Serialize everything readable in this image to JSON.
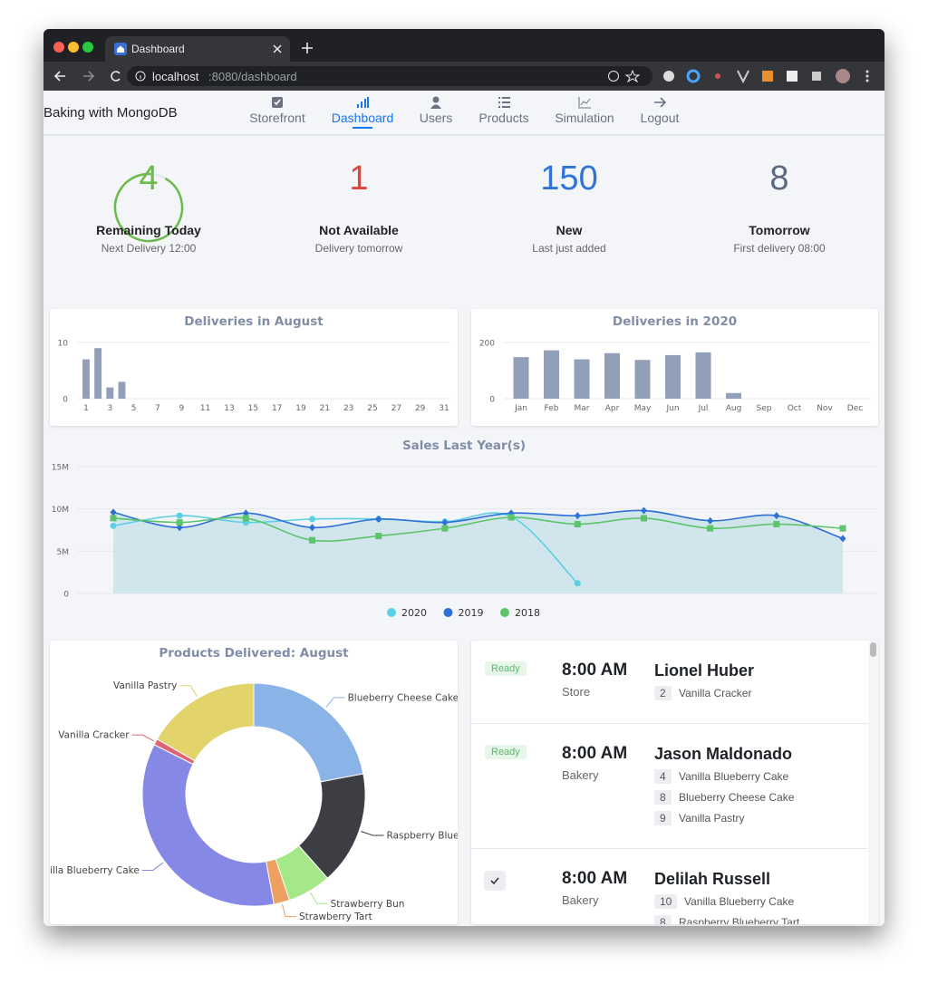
{
  "browser": {
    "tab_title": "Dashboard",
    "url_host": "localhost",
    "url_rest": ":8080/dashboard"
  },
  "app": {
    "brand": "Baking with MongoDB",
    "nav": [
      "Storefront",
      "Dashboard",
      "Users",
      "Products",
      "Simulation",
      "Logout"
    ]
  },
  "stats": [
    {
      "value": 4,
      "label": "Remaining Today",
      "sub": "Next Delivery 12:00"
    },
    {
      "value": 1,
      "label": "Not Available",
      "sub": "Delivery tomorrow"
    },
    {
      "value": 150,
      "label": "New",
      "sub": "Last just added"
    },
    {
      "value": 8,
      "label": "Tomorrow",
      "sub": "First delivery 08:00"
    }
  ],
  "chart_data": [
    {
      "type": "bar",
      "title": "Deliveries in August",
      "categories": [
        "1",
        null,
        "3",
        null,
        "5",
        null,
        "7",
        null,
        "9",
        null,
        "11",
        null,
        "13",
        null,
        "15",
        null,
        "17",
        null,
        "19",
        null,
        "21",
        null,
        "23",
        null,
        "25",
        null,
        "27",
        null,
        "29",
        null,
        "31"
      ],
      "values": [
        7,
        9,
        2,
        3,
        0,
        0,
        0,
        0,
        0,
        0,
        0,
        0,
        0,
        0,
        0,
        0,
        0,
        0,
        0,
        0,
        0,
        0,
        0,
        0,
        0,
        0,
        0,
        0,
        0,
        0,
        0
      ],
      "color": "#929fb8",
      "ylim": [
        0,
        10
      ],
      "yticks": [
        0,
        10
      ],
      "grid": true
    },
    {
      "type": "bar",
      "title": "Deliveries in 2020",
      "categories": [
        "Jan",
        "Feb",
        "Mar",
        "Apr",
        "May",
        "Jun",
        "Jul",
        "Aug",
        "Sep",
        "Oct",
        "Nov",
        "Dec"
      ],
      "values": [
        148,
        172,
        140,
        162,
        138,
        155,
        165,
        20,
        0,
        0,
        0,
        0
      ],
      "color": "#929fb8",
      "ylim": [
        0,
        200
      ],
      "yticks": [
        0,
        200
      ],
      "grid": true
    },
    {
      "type": "line",
      "title": "Sales Last Year(s)",
      "ylim": [
        0,
        15000000
      ],
      "yticks": [
        0,
        {
          "value": 5000000,
          "label": "5M"
        },
        {
          "value": 10000000,
          "label": "10M"
        },
        {
          "value": 15000000,
          "label": "15M"
        }
      ],
      "grid": true,
      "legend": "bottom",
      "series": [
        {
          "name": "2020",
          "color": "#5bcfe3",
          "marker": "circle",
          "values": [
            8000000,
            9200000,
            8400000,
            8800000,
            8800000,
            8500000,
            9100000,
            1200000,
            null,
            null,
            null,
            null
          ]
        },
        {
          "name": "2019",
          "color": "#2f6fd6",
          "marker": "diamond",
          "area": true,
          "values": [
            9600000,
            7800000,
            9500000,
            7800000,
            8800000,
            8400000,
            9500000,
            9200000,
            9800000,
            8600000,
            9200000,
            6500000
          ]
        },
        {
          "name": "2018",
          "color": "#5cc46a",
          "marker": "square",
          "values": [
            8900000,
            8400000,
            8900000,
            6300000,
            6800000,
            7700000,
            9000000,
            8200000,
            8900000,
            7700000,
            8200000,
            7700000
          ]
        }
      ]
    },
    {
      "type": "pie",
      "title": "Products Delivered: August",
      "categories": [
        "Blueberry Cheese Cake",
        "Raspberry Blueberry Tart",
        "Strawberry Bun",
        "Strawberry Tart",
        "Vanilla Blueberry Cake",
        "Vanilla Cracker",
        "Vanilla Pastry"
      ],
      "values": [
        22,
        16.5,
        6.3,
        2.3,
        35.3,
        0.9,
        16.7
      ],
      "colors": [
        "#8ab4e8",
        "#3d3e44",
        "#a4e88a",
        "#eea060",
        "#8688e6",
        "#e06377",
        "#e2d36a"
      ],
      "donut": true
    }
  ],
  "orders": [
    {
      "status": "Ready",
      "time": "8:00 AM",
      "place": "Store",
      "customer": "Lionel Huber",
      "items": [
        {
          "qty": 2,
          "name": "Vanilla Cracker"
        }
      ]
    },
    {
      "status": "Ready",
      "time": "8:00 AM",
      "place": "Bakery",
      "customer": "Jason Maldonado",
      "items": [
        {
          "qty": 4,
          "name": "Vanilla Blueberry Cake"
        },
        {
          "qty": 8,
          "name": "Blueberry Cheese Cake"
        },
        {
          "qty": 9,
          "name": "Vanilla Pastry"
        }
      ]
    },
    {
      "time": "8:00 AM",
      "place": "Bakery",
      "customer": "Delilah Russell",
      "items": [
        {
          "qty": 10,
          "name": "Vanilla Blueberry Cake"
        },
        {
          "qty": 8,
          "name": "Raspberry Blueberry Tart"
        }
      ]
    }
  ]
}
